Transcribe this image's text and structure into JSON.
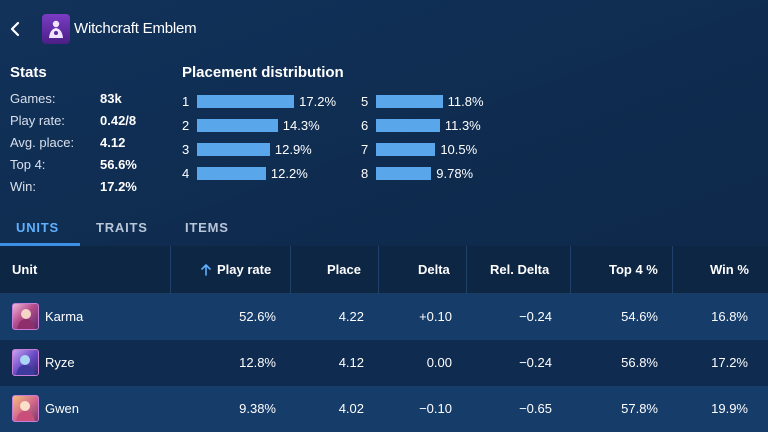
{
  "header": {
    "title": "Witchcraft Emblem",
    "back_icon": "chevron-left-icon",
    "emblem_icon": "witchcraft-emblem-icon"
  },
  "stats": {
    "title": "Stats",
    "items": [
      {
        "label": "Games:",
        "value": "83k"
      },
      {
        "label": "Play rate:",
        "value": "0.42/8"
      },
      {
        "label": "Avg. place:",
        "value": "4.12"
      },
      {
        "label": "Top 4:",
        "value": "56.6%"
      },
      {
        "label": "Win:",
        "value": "17.2%"
      }
    ]
  },
  "placement": {
    "title": "Placement distribution",
    "bar_color": "#59a7ea",
    "items": [
      {
        "place": "1",
        "percent": "17.2%",
        "value": 17.2
      },
      {
        "place": "2",
        "percent": "14.3%",
        "value": 14.3
      },
      {
        "place": "3",
        "percent": "12.9%",
        "value": 12.9
      },
      {
        "place": "4",
        "percent": "12.2%",
        "value": 12.2
      },
      {
        "place": "5",
        "percent": "11.8%",
        "value": 11.8
      },
      {
        "place": "6",
        "percent": "11.3%",
        "value": 11.3
      },
      {
        "place": "7",
        "percent": "10.5%",
        "value": 10.5
      },
      {
        "place": "8",
        "percent": "9.78%",
        "value": 9.78
      }
    ]
  },
  "tabs": [
    {
      "label": "UNITS",
      "active": true
    },
    {
      "label": "TRAITS",
      "active": false
    },
    {
      "label": "ITEMS",
      "active": false
    }
  ],
  "table": {
    "columns": [
      "Unit",
      "Play rate",
      "Place",
      "Delta",
      "Rel. Delta",
      "Top 4 %",
      "Win %"
    ],
    "sort_icon": "sort-up-arrow-icon",
    "rows": [
      {
        "unit": "Karma",
        "avatar_icon": "karma-portrait-icon",
        "play_rate": "52.6%",
        "place": "4.22",
        "delta": "+0.10",
        "rel_delta": "−0.24",
        "top4": "54.6%",
        "win": "16.8%"
      },
      {
        "unit": "Ryze",
        "avatar_icon": "ryze-portrait-icon",
        "play_rate": "12.8%",
        "place": "4.12",
        "delta": "0.00",
        "rel_delta": "−0.24",
        "top4": "56.8%",
        "win": "17.2%"
      },
      {
        "unit": "Gwen",
        "avatar_icon": "gwen-portrait-icon",
        "play_rate": "9.38%",
        "place": "4.02",
        "delta": "−0.10",
        "rel_delta": "−0.65",
        "top4": "57.8%",
        "win": "19.9%"
      }
    ]
  },
  "colors": {
    "accent": "#3d8fe6",
    "background": "#0f2a4e",
    "row_highlight": "#163c69"
  }
}
